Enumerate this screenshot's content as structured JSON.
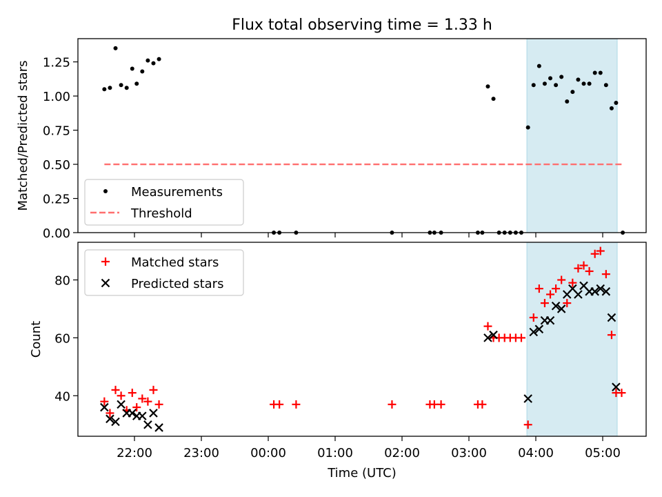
{
  "title": "Flux total observing time = 1.33 h",
  "colors": {
    "highlight": "#add8e6",
    "threshold": "#ff6e6e",
    "matched": "#ff0000",
    "predicted": "#000000",
    "measurement": "#000000"
  },
  "chart_data": [
    {
      "type": "scatter",
      "ylabel": "Matched/Predicted stars",
      "ylim": [
        0,
        1.42
      ],
      "y_ticks": [
        "0.00",
        "0.25",
        "0.50",
        "0.75",
        "1.00",
        "1.25"
      ],
      "highlight_span": [
        "03:52",
        "05:13"
      ],
      "legend_position": "lower-left",
      "series": [
        {
          "name": "Measurements",
          "marker": "dot",
          "points": [
            [
              "21:33",
              1.05
            ],
            [
              "21:38",
              1.06
            ],
            [
              "21:43",
              1.35
            ],
            [
              "21:48",
              1.08
            ],
            [
              "21:53",
              1.06
            ],
            [
              "21:58",
              1.2
            ],
            [
              "22:02",
              1.09
            ],
            [
              "22:07",
              1.18
            ],
            [
              "22:12",
              1.26
            ],
            [
              "22:17",
              1.24
            ],
            [
              "22:22",
              1.27
            ],
            [
              "00:05",
              0.0
            ],
            [
              "00:10",
              0.0
            ],
            [
              "00:25",
              0.0
            ],
            [
              "01:51",
              0.0
            ],
            [
              "02:25",
              0.0
            ],
            [
              "02:29",
              0.0
            ],
            [
              "02:35",
              0.0
            ],
            [
              "03:08",
              0.0
            ],
            [
              "03:12",
              0.0
            ],
            [
              "03:17",
              1.07
            ],
            [
              "03:22",
              0.98
            ],
            [
              "03:27",
              0.0
            ],
            [
              "03:32",
              0.0
            ],
            [
              "03:37",
              0.0
            ],
            [
              "03:42",
              0.0
            ],
            [
              "03:47",
              0.0
            ],
            [
              "03:53",
              0.77
            ],
            [
              "03:58",
              1.08
            ],
            [
              "04:03",
              1.22
            ],
            [
              "04:08",
              1.09
            ],
            [
              "04:13",
              1.13
            ],
            [
              "04:18",
              1.08
            ],
            [
              "04:23",
              1.14
            ],
            [
              "04:28",
              0.96
            ],
            [
              "04:33",
              1.03
            ],
            [
              "04:38",
              1.12
            ],
            [
              "04:43",
              1.09
            ],
            [
              "04:48",
              1.09
            ],
            [
              "04:53",
              1.17
            ],
            [
              "04:58",
              1.17
            ],
            [
              "05:03",
              1.08
            ],
            [
              "05:08",
              0.91
            ],
            [
              "05:12",
              0.95
            ],
            [
              "05:18",
              0.0
            ]
          ]
        },
        {
          "name": "Threshold",
          "marker": "dashed-line",
          "points": [
            [
              "21:33",
              0.5
            ],
            [
              "05:18",
              0.5
            ]
          ]
        }
      ]
    },
    {
      "type": "scatter",
      "xlabel": "Time (UTC)",
      "ylabel": "Count",
      "ylim": [
        26,
        93
      ],
      "y_ticks": [
        "40",
        "60",
        "80"
      ],
      "x_ticks": [
        "22:00",
        "23:00",
        "00:00",
        "01:00",
        "02:00",
        "03:00",
        "04:00",
        "05:00"
      ],
      "highlight_span": [
        "03:52",
        "05:13"
      ],
      "legend_position": "top-left",
      "series": [
        {
          "name": "Matched stars",
          "marker": "plus",
          "points": [
            [
              "21:33",
              38
            ],
            [
              "21:38",
              34
            ],
            [
              "21:43",
              42
            ],
            [
              "21:48",
              40
            ],
            [
              "21:53",
              35
            ],
            [
              "21:58",
              41
            ],
            [
              "22:02",
              36
            ],
            [
              "22:07",
              39
            ],
            [
              "22:12",
              38
            ],
            [
              "22:17",
              42
            ],
            [
              "22:22",
              37
            ],
            [
              "00:05",
              37
            ],
            [
              "00:10",
              37
            ],
            [
              "00:25",
              37
            ],
            [
              "01:51",
              37
            ],
            [
              "02:25",
              37
            ],
            [
              "02:29",
              37
            ],
            [
              "02:35",
              37
            ],
            [
              "03:08",
              37
            ],
            [
              "03:12",
              37
            ],
            [
              "03:17",
              64
            ],
            [
              "03:22",
              60
            ],
            [
              "03:27",
              60
            ],
            [
              "03:32",
              60
            ],
            [
              "03:37",
              60
            ],
            [
              "03:42",
              60
            ],
            [
              "03:47",
              60
            ],
            [
              "03:53",
              30
            ],
            [
              "03:58",
              67
            ],
            [
              "04:03",
              77
            ],
            [
              "04:08",
              72
            ],
            [
              "04:13",
              75
            ],
            [
              "04:18",
              77
            ],
            [
              "04:23",
              80
            ],
            [
              "04:28",
              72
            ],
            [
              "04:33",
              79
            ],
            [
              "04:38",
              84
            ],
            [
              "04:43",
              85
            ],
            [
              "04:48",
              83
            ],
            [
              "04:53",
              89
            ],
            [
              "04:58",
              90
            ],
            [
              "05:03",
              82
            ],
            [
              "05:08",
              61
            ],
            [
              "05:12",
              41
            ],
            [
              "05:17",
              41
            ]
          ]
        },
        {
          "name": "Predicted stars",
          "marker": "x",
          "points": [
            [
              "21:33",
              36
            ],
            [
              "21:38",
              32
            ],
            [
              "21:43",
              31
            ],
            [
              "21:48",
              37
            ],
            [
              "21:53",
              34
            ],
            [
              "21:58",
              34
            ],
            [
              "22:02",
              33
            ],
            [
              "22:07",
              33
            ],
            [
              "22:12",
              30
            ],
            [
              "22:17",
              34
            ],
            [
              "22:22",
              29
            ],
            [
              "03:17",
              60
            ],
            [
              "03:22",
              61
            ],
            [
              "03:53",
              39
            ],
            [
              "03:58",
              62
            ],
            [
              "04:03",
              63
            ],
            [
              "04:08",
              66
            ],
            [
              "04:13",
              66
            ],
            [
              "04:18",
              71
            ],
            [
              "04:23",
              70
            ],
            [
              "04:28",
              75
            ],
            [
              "04:33",
              77
            ],
            [
              "04:38",
              75
            ],
            [
              "04:43",
              78
            ],
            [
              "04:48",
              76
            ],
            [
              "04:53",
              76
            ],
            [
              "04:58",
              77
            ],
            [
              "05:03",
              76
            ],
            [
              "05:08",
              67
            ],
            [
              "05:12",
              43
            ]
          ]
        }
      ]
    }
  ]
}
